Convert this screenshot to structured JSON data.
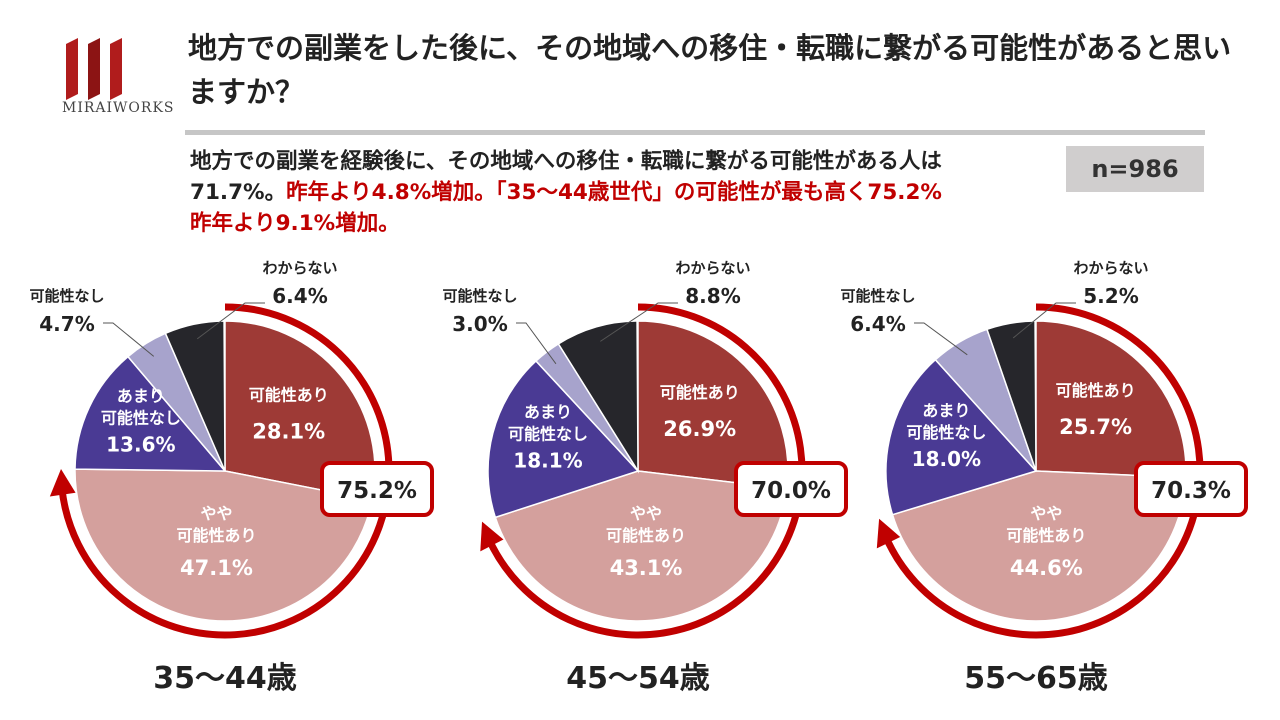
{
  "logo": {
    "text": "MIRAIWORKS",
    "icon": "miraiworks-logo-icon"
  },
  "title": "地方での副業をした後に、その地域への移住・転職に繋がる可能性があると思いますか？",
  "summary": {
    "line1": "地方での副業を経験後に、その地域への移住・転職に繋がる可能性がある人は",
    "line2a": "71.7%。",
    "line2b": "昨年より4.8%増加。「35～44歳世代」の可能性が最も高く75.2%",
    "line3": "昨年より9.1%増加。"
  },
  "sample_size": "n=986",
  "colors": {
    "possible": "#9e3a36",
    "somewhat_possible": "#d4a09d",
    "not_very": "#4a3a94",
    "none": "#a7a3cc",
    "unknown": "#26262b",
    "accent_red": "#c00000"
  },
  "chart_data": [
    {
      "type": "pie",
      "title": "35～44歳",
      "categories": [
        "可能性あり",
        "やや可能性あり",
        "あまり可能性なし",
        "可能性なし",
        "わからない"
      ],
      "values": [
        28.1,
        47.1,
        13.6,
        4.7,
        6.4
      ],
      "labels": [
        "28.1%",
        "47.1%",
        "13.6%",
        "4.7%",
        "6.4%"
      ],
      "total_label": "75.2%",
      "total": 75.2
    },
    {
      "type": "pie",
      "title": "45～54歳",
      "categories": [
        "可能性あり",
        "やや可能性あり",
        "あまり可能性なし",
        "可能性なし",
        "わからない"
      ],
      "values": [
        26.9,
        43.1,
        18.1,
        3.0,
        8.8
      ],
      "labels": [
        "26.9%",
        "43.1%",
        "18.1%",
        "3.0%",
        "8.8%"
      ],
      "total_label": "70.0%",
      "total": 70.0
    },
    {
      "type": "pie",
      "title": "55～65歳",
      "categories": [
        "可能性あり",
        "やや可能性あり",
        "あまり可能性なし",
        "可能性なし",
        "わからない"
      ],
      "values": [
        25.7,
        44.6,
        18.0,
        6.4,
        5.2
      ],
      "labels": [
        "25.7%",
        "44.6%",
        "18.0%",
        "6.4%",
        "5.2%"
      ],
      "total_label": "70.3%",
      "total": 70.3
    }
  ]
}
